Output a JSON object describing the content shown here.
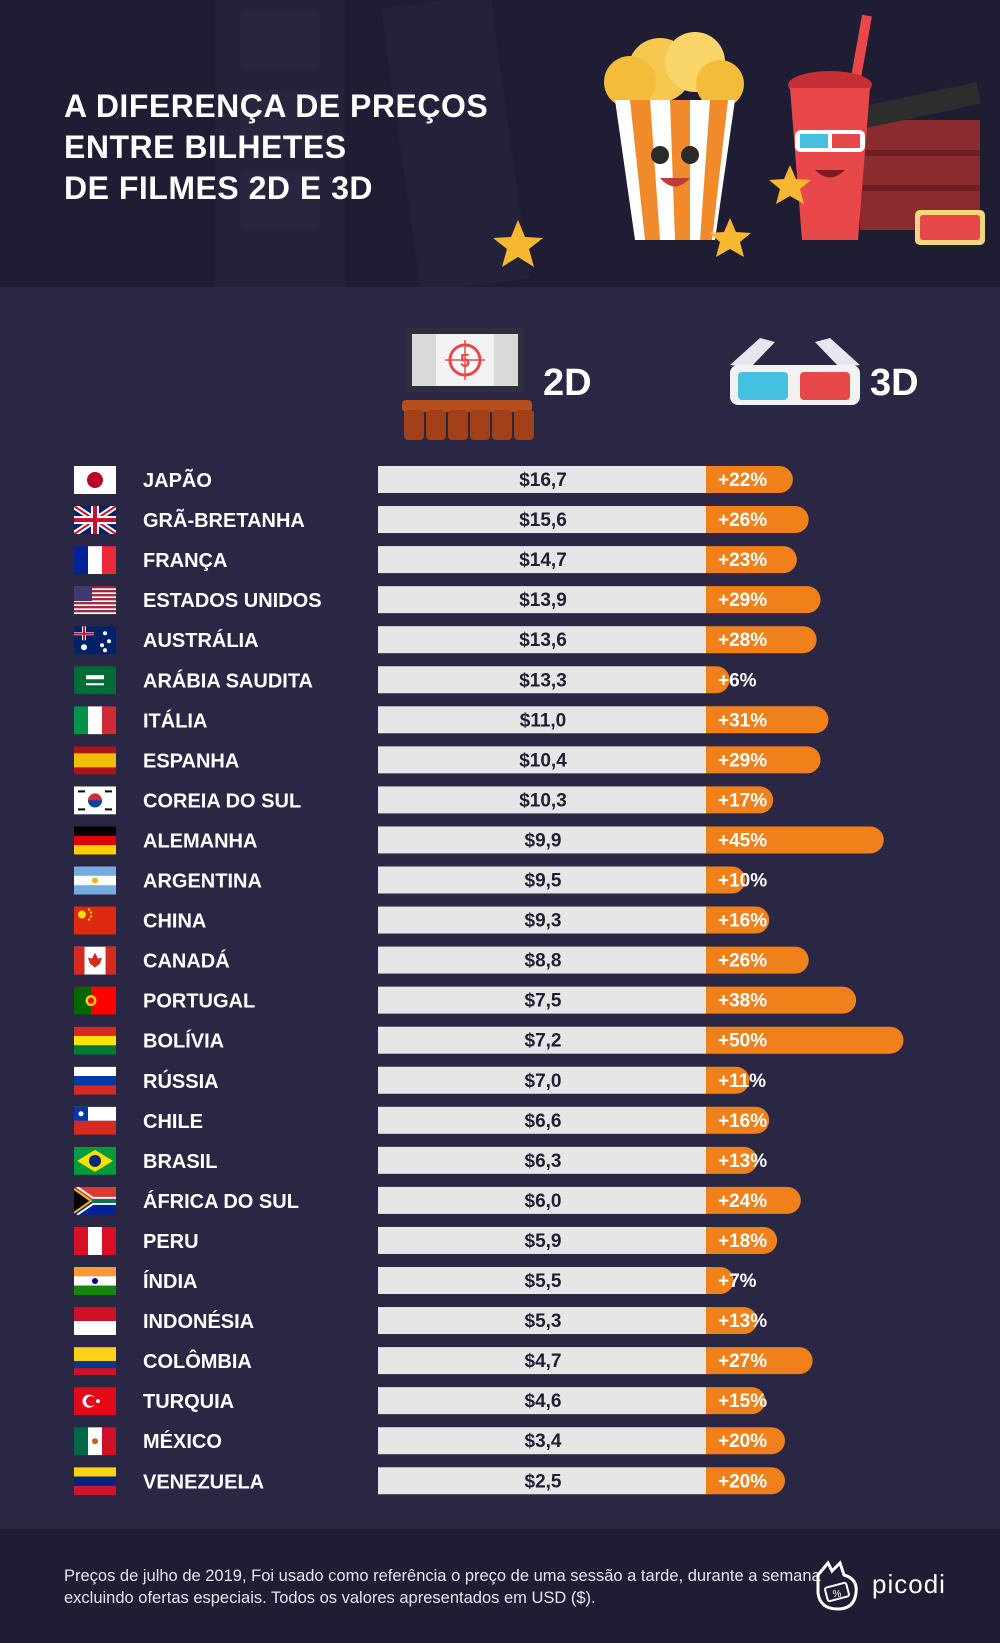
{
  "header": {
    "title_lines": [
      "A DIFERENÇA DE PREÇOS",
      "ENTRE BILHETES",
      "DE FILMES 2D E 3D"
    ]
  },
  "columns": {
    "label_2d": "2D",
    "label_3d": "3D",
    "screen_number": "5"
  },
  "colors": {
    "background": "#2a2745",
    "header_background": "#1f1d33",
    "bar_2d": "#e6e6e6",
    "bar_3d": "#f0801a",
    "text": "#ffffff"
  },
  "icons": [
    "cinema-screen-icon",
    "3d-glasses-icon",
    "popcorn-icon",
    "soda-cup-icon",
    "clapperboard-icon",
    "star-icon",
    "ticket-icon",
    "picodi-logo-icon"
  ],
  "chart_data": {
    "type": "bar",
    "orientation": "horizontal",
    "stacked": true,
    "categories": [
      "JAPÃO",
      "GRÃ-BRETANHA",
      "FRANÇA",
      "ESTADOS UNIDOS",
      "AUSTRÁLIA",
      "ARÁBIA SAUDITA",
      "ITÁLIA",
      "ESPANHA",
      "COREIA DO SUL",
      "ALEMANHA",
      "ARGENTINA",
      "CHINA",
      "CANADÁ",
      "PORTUGAL",
      "BOLÍVIA",
      "RÚSSIA",
      "CHILE",
      "BRASIL",
      "ÁFRICA DO SUL",
      "PERU",
      "ÍNDIA",
      "INDONÉSIA",
      "COLÔMBIA",
      "TURQUIA",
      "MÉXICO",
      "VENEZUELA"
    ],
    "series": [
      {
        "name": "2D",
        "values": [
          16.7,
          15.6,
          14.7,
          13.9,
          13.6,
          13.3,
          11.0,
          10.4,
          10.3,
          9.9,
          9.5,
          9.3,
          8.8,
          7.5,
          7.2,
          7.0,
          6.6,
          6.3,
          6.0,
          5.9,
          5.5,
          5.3,
          4.7,
          4.6,
          3.4,
          2.5
        ],
        "labels": [
          "$16,7",
          "$15,6",
          "$14,7",
          "$13,9",
          "$13,6",
          "$13,3",
          "$11,0",
          "$10,4",
          "$10,3",
          "$9,9",
          "$9,5",
          "$9,3",
          "$8,8",
          "$7,5",
          "$7,2",
          "$7,0",
          "$6,6",
          "$6,3",
          "$6,0",
          "$5,9",
          "$5,5",
          "$5,3",
          "$4,7",
          "$4,6",
          "$3,4",
          "$2,5"
        ]
      },
      {
        "name": "3D",
        "values": [
          22,
          26,
          23,
          29,
          28,
          6,
          31,
          29,
          17,
          45,
          10,
          16,
          26,
          38,
          50,
          11,
          16,
          13,
          24,
          18,
          7,
          13,
          27,
          15,
          20,
          20
        ],
        "labels": [
          "+22%",
          "+26%",
          "+23%",
          "+29%",
          "+28%",
          "+6%",
          "+31%",
          "+29%",
          "+17%",
          "+45%",
          "+10%",
          "+16%",
          "+26%",
          "+38%",
          "+50%",
          "+11%",
          "+16%",
          "+13%",
          "+24%",
          "+18%",
          "+7%",
          "+13%",
          "+27%",
          "+15%",
          "+20%",
          "+20%"
        ]
      }
    ],
    "flags": [
      "japan",
      "united-kingdom",
      "france",
      "united-states",
      "australia",
      "saudi-arabia",
      "italy",
      "spain",
      "south-korea",
      "germany",
      "argentina",
      "china",
      "canada",
      "portugal",
      "bolivia",
      "russia",
      "chile",
      "brazil",
      "south-africa",
      "peru",
      "india",
      "indonesia",
      "colombia",
      "turkey",
      "mexico",
      "venezuela"
    ]
  },
  "footer": {
    "note": "Preços de julho de 2019, Foi usado como referência o preço de uma sessão a tarde, durante a semana excluindo ofertas especiais. Todos os valores apresentados em USD ($).",
    "brand": "picodi"
  }
}
